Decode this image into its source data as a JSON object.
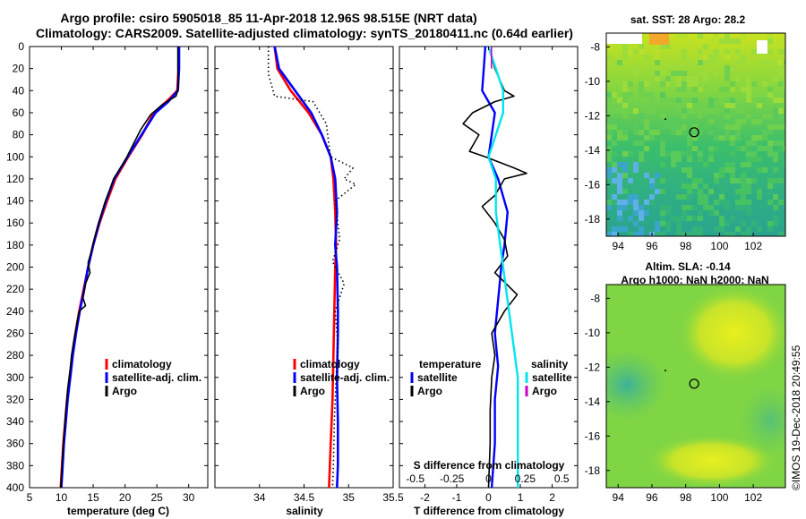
{
  "title": {
    "line1": "Argo profile: csiro 5905018_85 11-Apr-2018 12.96S 98.515E (NRT data)",
    "line2": "Climatology: CARS2009. Satellite-adjusted climatology: synTS_20180411.nc (0.64d earlier)"
  },
  "colors": {
    "climatology": "#ff0000",
    "satellite": "#0000ff",
    "argo": "#000000",
    "sal_satellite": "#00e5ee",
    "sal_argo": "#cc00cc"
  },
  "depth_axis": {
    "ticks": [
      "0",
      "20",
      "40",
      "60",
      "80",
      "100",
      "120",
      "140",
      "160",
      "180",
      "200",
      "220",
      "240",
      "260",
      "280",
      "300",
      "320",
      "340",
      "360",
      "380",
      "400"
    ]
  },
  "chart_data": [
    {
      "type": "line",
      "name": "temperature",
      "xlabel": "temperature (deg C)",
      "ylabel": "depth",
      "xlim": [
        5,
        33
      ],
      "ylim": [
        400,
        0
      ],
      "xticks": [
        "5",
        "10",
        "15",
        "20",
        "25",
        "30"
      ],
      "legend": {
        "climatology": "climatology",
        "satellite": "satellite-adj. clim.",
        "argo": "Argo"
      },
      "series": [
        {
          "name": "climatology",
          "color": "#ff0000",
          "points": [
            [
              28.4,
              0
            ],
            [
              28.4,
              20
            ],
            [
              28.2,
              40
            ],
            [
              26.5,
              50
            ],
            [
              24.5,
              60
            ],
            [
              22.7,
              80
            ],
            [
              20.5,
              100
            ],
            [
              18.5,
              120
            ],
            [
              17.2,
              140
            ],
            [
              16,
              160
            ],
            [
              15,
              180
            ],
            [
              14.2,
              200
            ],
            [
              13.5,
              220
            ],
            [
              12.8,
              240
            ],
            [
              12.2,
              260
            ],
            [
              11.7,
              280
            ],
            [
              11.3,
              300
            ],
            [
              10.9,
              320
            ],
            [
              10.6,
              340
            ],
            [
              10.3,
              360
            ],
            [
              10.1,
              380
            ],
            [
              9.9,
              400
            ]
          ]
        },
        {
          "name": "satellite-adj. clim.",
          "color": "#0000ff",
          "points": [
            [
              28.5,
              0
            ],
            [
              28.5,
              20
            ],
            [
              28.3,
              40
            ],
            [
              26.8,
              50
            ],
            [
              24.8,
              60
            ],
            [
              22.6,
              80
            ],
            [
              20.4,
              100
            ],
            [
              18.3,
              120
            ],
            [
              17,
              140
            ],
            [
              15.9,
              160
            ],
            [
              15,
              180
            ],
            [
              14.2,
              200
            ],
            [
              13.6,
              220
            ],
            [
              12.9,
              240
            ],
            [
              12.3,
              260
            ],
            [
              11.8,
              280
            ],
            [
              11.4,
              300
            ],
            [
              11,
              320
            ],
            [
              10.7,
              340
            ],
            [
              10.4,
              360
            ],
            [
              10.2,
              380
            ],
            [
              10,
              400
            ]
          ]
        },
        {
          "name": "Argo",
          "color": "#000000",
          "points": [
            [
              28.3,
              0
            ],
            [
              28.3,
              20
            ],
            [
              28.4,
              38
            ],
            [
              28,
              45
            ],
            [
              26,
              52
            ],
            [
              24,
              62
            ],
            [
              22.5,
              75
            ],
            [
              21,
              92
            ],
            [
              20.3,
              100
            ],
            [
              19.5,
              108
            ],
            [
              18.2,
              120
            ],
            [
              17.6,
              130
            ],
            [
              16.8,
              142
            ],
            [
              16.3,
              152
            ],
            [
              15.6,
              165
            ],
            [
              15,
              178
            ],
            [
              14.6,
              188
            ],
            [
              14.2,
              196
            ],
            [
              14.5,
              205
            ],
            [
              13.8,
              215
            ],
            [
              13.4,
              228
            ],
            [
              13.8,
              235
            ],
            [
              12.8,
              240
            ],
            [
              12.4,
              252
            ],
            [
              12,
              265
            ],
            [
              11.6,
              280
            ],
            [
              11.4,
              292
            ],
            [
              11,
              310
            ],
            [
              10.7,
              330
            ],
            [
              10.5,
              345
            ],
            [
              10.3,
              360
            ],
            [
              10.1,
              380
            ],
            [
              9.9,
              400
            ]
          ]
        }
      ]
    },
    {
      "type": "line",
      "name": "salinity",
      "xlabel": "salinity",
      "xlim": [
        33.5,
        35.5
      ],
      "ylim": [
        400,
        0
      ],
      "xticks": [
        "34",
        "34.5",
        "35",
        "35.5"
      ],
      "legend": {
        "climatology": "climatology",
        "satellite": "satellite-adj. clim.",
        "argo": "Argo"
      },
      "series": [
        {
          "name": "climatology",
          "color": "#ff0000",
          "points": [
            [
              34.17,
              0
            ],
            [
              34.2,
              20
            ],
            [
              34.35,
              40
            ],
            [
              34.55,
              60
            ],
            [
              34.7,
              80
            ],
            [
              34.8,
              100
            ],
            [
              34.83,
              120
            ],
            [
              34.85,
              150
            ],
            [
              34.86,
              180
            ],
            [
              34.85,
              200
            ],
            [
              34.84,
              240
            ],
            [
              34.83,
              280
            ],
            [
              34.82,
              320
            ],
            [
              34.8,
              360
            ],
            [
              34.78,
              400
            ]
          ]
        },
        {
          "name": "satellite-adj. clim.",
          "color": "#0000ff",
          "points": [
            [
              34.17,
              0
            ],
            [
              34.22,
              20
            ],
            [
              34.4,
              40
            ],
            [
              34.58,
              60
            ],
            [
              34.7,
              80
            ],
            [
              34.8,
              100
            ],
            [
              34.85,
              120
            ],
            [
              34.87,
              150
            ],
            [
              34.85,
              180
            ],
            [
              34.87,
              200
            ],
            [
              34.88,
              240
            ],
            [
              34.88,
              260
            ],
            [
              34.87,
              300
            ],
            [
              34.88,
              340
            ],
            [
              34.88,
              380
            ],
            [
              34.87,
              400
            ]
          ]
        },
        {
          "name": "Argo",
          "color": "#000000",
          "style": "dotted",
          "points": [
            [
              34.1,
              0
            ],
            [
              34.1,
              25
            ],
            [
              34.17,
              45
            ],
            [
              34.6,
              50
            ],
            [
              34.75,
              70
            ],
            [
              34.78,
              90
            ],
            [
              34.8,
              100
            ],
            [
              35.05,
              110
            ],
            [
              34.95,
              120
            ],
            [
              35.08,
              125
            ],
            [
              34.85,
              140
            ],
            [
              34.9,
              175
            ],
            [
              34.82,
              195
            ],
            [
              34.95,
              215
            ],
            [
              34.85,
              240
            ],
            [
              34.88,
              270
            ],
            [
              34.86,
              300
            ],
            [
              34.84,
              340
            ],
            [
              34.83,
              380
            ],
            [
              34.82,
              400
            ]
          ]
        }
      ]
    },
    {
      "type": "line",
      "name": "difference",
      "xlabel": "T difference from climatology",
      "top_xlabel": "S difference from climatology",
      "xlim": [
        -2.8,
        2.8
      ],
      "ylim": [
        400,
        0
      ],
      "xticks": [
        "-2",
        "-1",
        "0",
        "1",
        "2"
      ],
      "top_xticks": [
        "-0.5",
        "-0.25",
        "0",
        "0.25",
        "0.5"
      ],
      "legend": {
        "temperature": "temperature",
        "salinity": "salinity",
        "satellite": "satellite",
        "argo": "Argo"
      },
      "series": [
        {
          "name": "temperature satellite",
          "color": "#0000ff",
          "points": [
            [
              -0.1,
              0
            ],
            [
              -0.15,
              20
            ],
            [
              -0.2,
              40
            ],
            [
              0,
              50
            ],
            [
              0.2,
              60
            ],
            [
              0.1,
              80
            ],
            [
              0,
              100
            ],
            [
              0.3,
              120
            ],
            [
              0.6,
              150
            ],
            [
              0.5,
              180
            ],
            [
              0.4,
              200
            ],
            [
              0.3,
              230
            ],
            [
              0.2,
              260
            ],
            [
              0.3,
              290
            ],
            [
              0.2,
              320
            ],
            [
              0.2,
              360
            ],
            [
              0.1,
              400
            ]
          ]
        },
        {
          "name": "temperature Argo",
          "color": "#000000",
          "points": [
            [
              0,
              0
            ],
            [
              0.2,
              20
            ],
            [
              0.5,
              40
            ],
            [
              0.8,
              45
            ],
            [
              0.2,
              50
            ],
            [
              -0.5,
              60
            ],
            [
              -0.8,
              70
            ],
            [
              -0.3,
              80
            ],
            [
              -0.6,
              95
            ],
            [
              -0.1,
              100
            ],
            [
              0.8,
              110
            ],
            [
              1.2,
              115
            ],
            [
              0.5,
              120
            ],
            [
              0.2,
              135
            ],
            [
              -0.2,
              145
            ],
            [
              0.2,
              160
            ],
            [
              0.5,
              175
            ],
            [
              0.6,
              190
            ],
            [
              0.2,
              205
            ],
            [
              0.9,
              225
            ],
            [
              0.5,
              240
            ],
            [
              0.1,
              260
            ],
            [
              0.2,
              280
            ],
            [
              0.1,
              300
            ],
            [
              0.05,
              330
            ],
            [
              0.05,
              360
            ],
            [
              0,
              400
            ]
          ]
        },
        {
          "name": "salinity satellite",
          "color": "#00e5ee",
          "points": [
            [
              0,
              0
            ],
            [
              0.05,
              20
            ],
            [
              0.1,
              40
            ],
            [
              0.1,
              60
            ],
            [
              0.05,
              80
            ],
            [
              0,
              100
            ],
            [
              0.05,
              120
            ],
            [
              0.05,
              150
            ],
            [
              0.1,
              200
            ],
            [
              0.15,
              250
            ],
            [
              0.2,
              300
            ],
            [
              0.2,
              350
            ],
            [
              0.2,
              400
            ]
          ]
        },
        {
          "name": "salinity Argo",
          "color": "#cc00cc",
          "points": [
            [
              0.02,
              0
            ],
            [
              0.02,
              20
            ]
          ]
        }
      ]
    }
  ],
  "sst_map": {
    "title": "sat. SST: 28  Argo: 28.2",
    "xticks": [
      "94",
      "96",
      "98",
      "100",
      "102"
    ],
    "yticks": [
      "-8",
      "-10",
      "-12",
      "-14",
      "-16",
      "-18"
    ],
    "xlim": [
      93.3,
      103.9
    ],
    "ylim": [
      -19,
      -7.2
    ],
    "profile": [
      98.5,
      -12.96
    ]
  },
  "sla_map": {
    "title": "Altim. SLA: -0.14",
    "subtitle": "Argo h1000: NaN h2000: NaN",
    "xticks": [
      "94",
      "96",
      "98",
      "100",
      "102"
    ],
    "yticks": [
      "-8",
      "-10",
      "-12",
      "-14",
      "-16",
      "-18"
    ],
    "xlim": [
      93.3,
      103.9
    ],
    "ylim": [
      -19,
      -7.2
    ],
    "profile": [
      98.5,
      -12.96
    ]
  },
  "credit": "©IMOS 19-Dec-2018 20:49:55"
}
